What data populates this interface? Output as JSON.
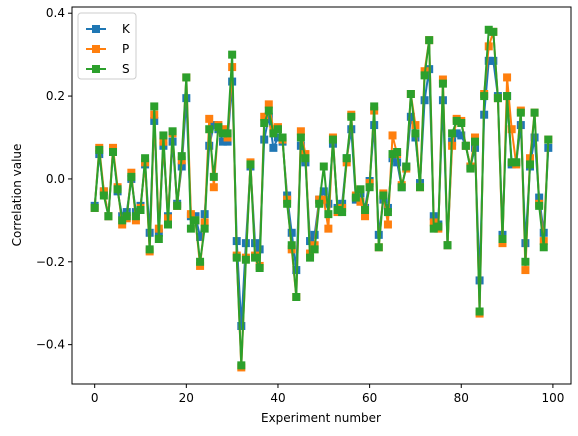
{
  "chart_data": {
    "type": "line",
    "xlabel": "Experiment number",
    "ylabel": "Correlation value",
    "xlim": [
      -4.95,
      103.95
    ],
    "ylim": [
      -0.495,
      0.415
    ],
    "xticks": [
      0,
      20,
      40,
      60,
      80,
      100
    ],
    "yticks": [
      -0.4,
      -0.2,
      0.0,
      0.2,
      0.4
    ],
    "xtick_labels": [
      "0",
      "20",
      "40",
      "60",
      "80",
      "100"
    ],
    "ytick_labels": [
      "−0.4",
      "−0.2",
      "0.0",
      "0.2",
      "0.4"
    ],
    "grid": false,
    "legend_position": "top-left",
    "x": [
      0,
      1,
      2,
      3,
      4,
      5,
      6,
      7,
      8,
      9,
      10,
      11,
      12,
      13,
      14,
      15,
      16,
      17,
      18,
      19,
      20,
      21,
      22,
      23,
      24,
      25,
      26,
      27,
      28,
      29,
      30,
      31,
      32,
      33,
      34,
      35,
      36,
      37,
      38,
      39,
      40,
      41,
      42,
      43,
      44,
      45,
      46,
      47,
      48,
      49,
      50,
      51,
      52,
      53,
      54,
      55,
      56,
      57,
      58,
      59,
      60,
      61,
      62,
      63,
      64,
      65,
      66,
      67,
      68,
      69,
      70,
      71,
      72,
      73,
      74,
      75,
      76,
      77,
      78,
      79,
      80,
      81,
      82,
      83,
      84,
      85,
      86,
      87,
      88,
      89,
      90,
      91,
      92,
      93,
      94,
      95,
      96,
      97,
      98,
      99
    ],
    "series": [
      {
        "name": "K",
        "color": "#1f77b4",
        "marker": "square",
        "values": [
          -0.065,
          0.06,
          -0.03,
          -0.09,
          0.07,
          -0.03,
          -0.09,
          -0.08,
          0.0,
          -0.08,
          -0.065,
          0.035,
          -0.13,
          0.14,
          -0.13,
          0.08,
          -0.09,
          0.09,
          -0.06,
          0.03,
          0.195,
          -0.09,
          -0.09,
          -0.14,
          -0.085,
          0.08,
          0.13,
          0.12,
          0.09,
          0.09,
          0.235,
          -0.15,
          -0.355,
          -0.155,
          0.03,
          -0.155,
          -0.17,
          0.095,
          0.15,
          0.075,
          0.1,
          0.09,
          -0.04,
          -0.13,
          -0.22,
          0.08,
          0.04,
          -0.15,
          -0.135,
          -0.05,
          -0.03,
          -0.06,
          0.085,
          -0.07,
          -0.06,
          0.05,
          0.12,
          -0.05,
          -0.035,
          -0.07,
          -0.005,
          0.13,
          -0.135,
          -0.05,
          -0.07,
          0.05,
          0.04,
          -0.02,
          0.03,
          0.15,
          0.1,
          -0.01,
          0.19,
          0.265,
          -0.09,
          -0.11,
          0.19,
          -0.16,
          0.09,
          0.11,
          0.105,
          0.08,
          0.03,
          0.075,
          -0.245,
          0.155,
          0.285,
          0.285,
          0.2,
          -0.135,
          0.2,
          0.035,
          0.04,
          0.13,
          -0.155,
          0.03,
          0.1,
          -0.045,
          -0.13,
          0.075
        ]
      },
      {
        "name": "P",
        "color": "#ff7f0e",
        "marker": "square",
        "values": [
          -0.07,
          0.075,
          -0.03,
          -0.09,
          0.075,
          -0.02,
          -0.11,
          -0.095,
          0.015,
          -0.1,
          -0.07,
          0.04,
          -0.175,
          0.155,
          -0.12,
          0.09,
          -0.095,
          0.11,
          -0.065,
          0.045,
          0.245,
          -0.085,
          -0.1,
          -0.21,
          -0.105,
          0.145,
          -0.02,
          0.13,
          0.12,
          0.1,
          0.27,
          -0.185,
          -0.455,
          -0.19,
          0.04,
          -0.185,
          -0.21,
          0.15,
          0.18,
          0.12,
          0.125,
          0.095,
          -0.05,
          -0.17,
          -0.285,
          0.115,
          0.06,
          -0.18,
          -0.16,
          -0.05,
          -0.05,
          -0.12,
          0.1,
          -0.08,
          -0.07,
          0.04,
          0.155,
          -0.04,
          -0.055,
          -0.09,
          -0.01,
          0.165,
          -0.165,
          -0.035,
          -0.11,
          0.105,
          0.06,
          -0.015,
          0.025,
          0.205,
          0.13,
          -0.02,
          0.26,
          0.335,
          -0.105,
          -0.12,
          0.24,
          -0.16,
          0.08,
          0.145,
          0.14,
          0.08,
          0.03,
          0.1,
          -0.325,
          0.205,
          0.32,
          0.355,
          0.195,
          -0.155,
          0.245,
          0.12,
          0.035,
          0.165,
          -0.22,
          0.05,
          0.16,
          -0.06,
          -0.15,
          0.095
        ]
      },
      {
        "name": "S",
        "color": "#2ca02c",
        "marker": "square",
        "values": [
          -0.07,
          0.07,
          -0.04,
          -0.09,
          0.065,
          -0.025,
          -0.1,
          -0.09,
          0.005,
          -0.09,
          -0.075,
          0.05,
          -0.17,
          0.175,
          -0.145,
          0.105,
          -0.11,
          0.115,
          -0.065,
          0.055,
          0.245,
          -0.12,
          -0.1,
          -0.2,
          -0.12,
          0.12,
          0.005,
          0.125,
          0.11,
          0.11,
          0.3,
          -0.19,
          -0.45,
          -0.195,
          0.035,
          -0.19,
          -0.215,
          0.135,
          0.165,
          0.11,
          0.12,
          0.1,
          -0.06,
          -0.16,
          -0.285,
          0.1,
          0.05,
          -0.19,
          -0.17,
          -0.06,
          0.03,
          -0.085,
          0.095,
          -0.075,
          -0.08,
          0.05,
          0.15,
          -0.045,
          -0.025,
          -0.075,
          -0.02,
          0.175,
          -0.165,
          -0.04,
          -0.08,
          0.06,
          0.065,
          -0.02,
          0.03,
          0.205,
          0.11,
          -0.02,
          0.25,
          0.335,
          -0.12,
          -0.115,
          0.23,
          -0.16,
          0.11,
          0.14,
          0.135,
          0.08,
          0.025,
          0.09,
          -0.32,
          0.2,
          0.36,
          0.355,
          0.195,
          -0.145,
          0.2,
          0.04,
          0.04,
          0.16,
          -0.2,
          0.035,
          0.16,
          -0.065,
          -0.165,
          0.095
        ]
      }
    ]
  }
}
